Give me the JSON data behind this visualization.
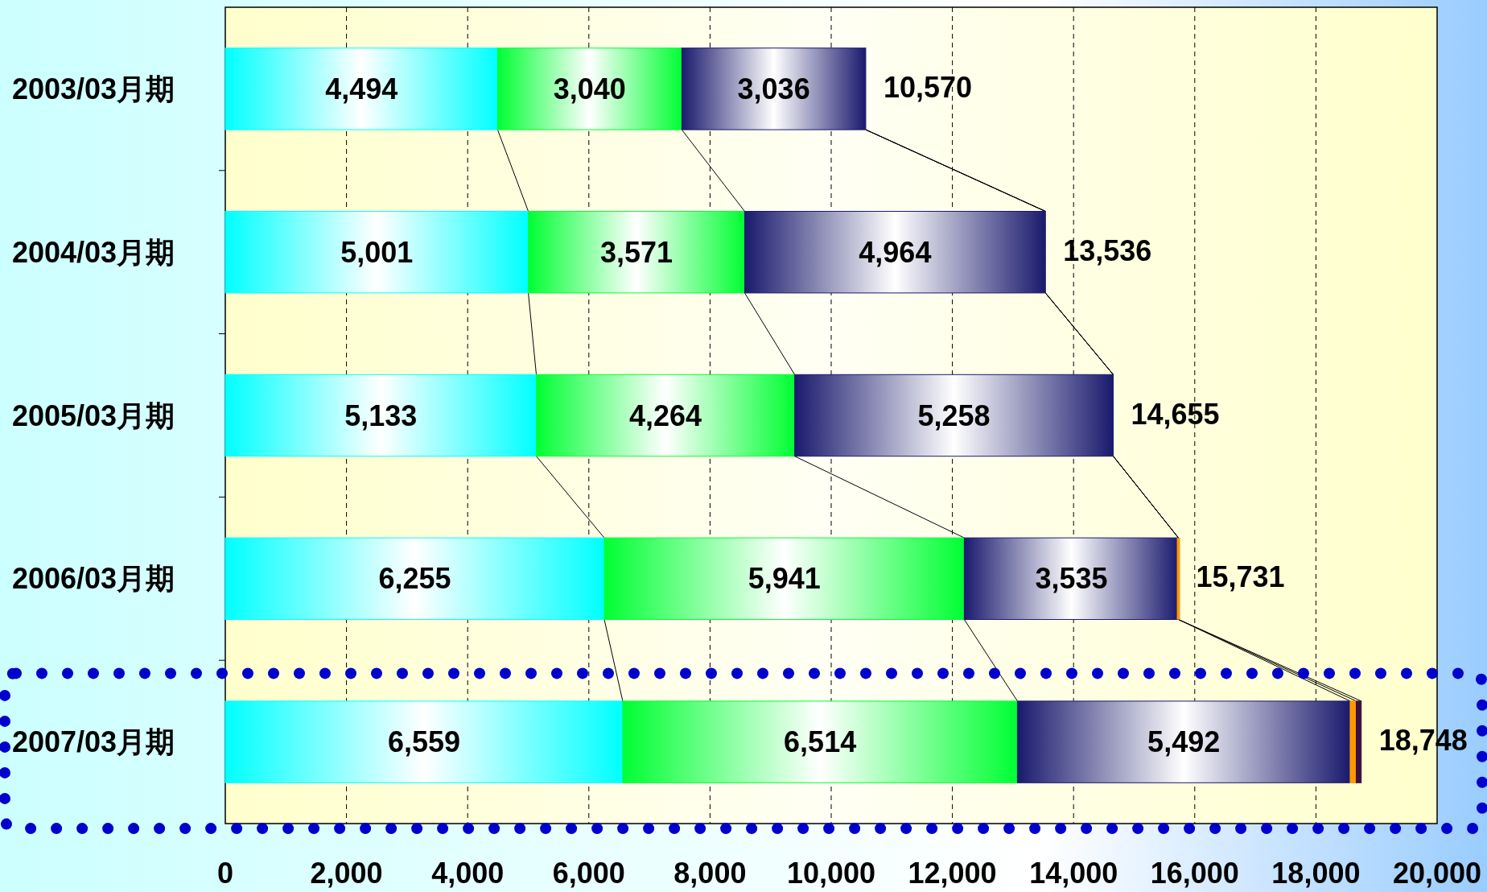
{
  "chart_data": {
    "type": "bar",
    "orientation": "horizontal",
    "stacked": true,
    "categories": [
      "2003/03月期",
      "2004/03月期",
      "2005/03月期",
      "2006/03月期",
      "2007/03月期"
    ],
    "series": [
      {
        "color": "#00ffff",
        "values": [
          4494,
          5001,
          5133,
          6255,
          6559
        ],
        "value_labels": [
          "4,494",
          "5,001",
          "5,133",
          "6,255",
          "6,559"
        ]
      },
      {
        "color": "#00ff33",
        "values": [
          3040,
          3571,
          4264,
          5941,
          6514
        ],
        "value_labels": [
          "3,040",
          "3,571",
          "4,264",
          "5,941",
          "6,514"
        ]
      },
      {
        "color": "#1a1a6e",
        "values": [
          3036,
          4964,
          5258,
          3535,
          5492
        ],
        "value_labels": [
          "3,036",
          "4,964",
          "5,258",
          "3,535",
          "5,492"
        ]
      },
      {
        "color": "#ff9900",
        "values": [
          null,
          null,
          null,
          0,
          100
        ]
      },
      {
        "color": "#3a1040",
        "values": [
          null,
          null,
          null,
          null,
          83
        ]
      }
    ],
    "totals": [
      "10,570",
      "13,536",
      "14,655",
      "15,731",
      "18,748"
    ],
    "xlim": [
      0,
      20000
    ],
    "xticks": [
      {
        "value": 0,
        "label": "0"
      },
      {
        "value": 2000,
        "label": "2,000"
      },
      {
        "value": 4000,
        "label": "4,000"
      },
      {
        "value": 6000,
        "label": "6,000"
      },
      {
        "value": 8000,
        "label": "8,000"
      },
      {
        "value": 10000,
        "label": "10,000"
      },
      {
        "value": 12000,
        "label": "12,000"
      },
      {
        "value": 14000,
        "label": "14,000"
      },
      {
        "value": 16000,
        "label": "16,000"
      },
      {
        "value": 18000,
        "label": "18,000"
      },
      {
        "value": 20000,
        "label": "20,000"
      }
    ],
    "grid": "x"
  }
}
